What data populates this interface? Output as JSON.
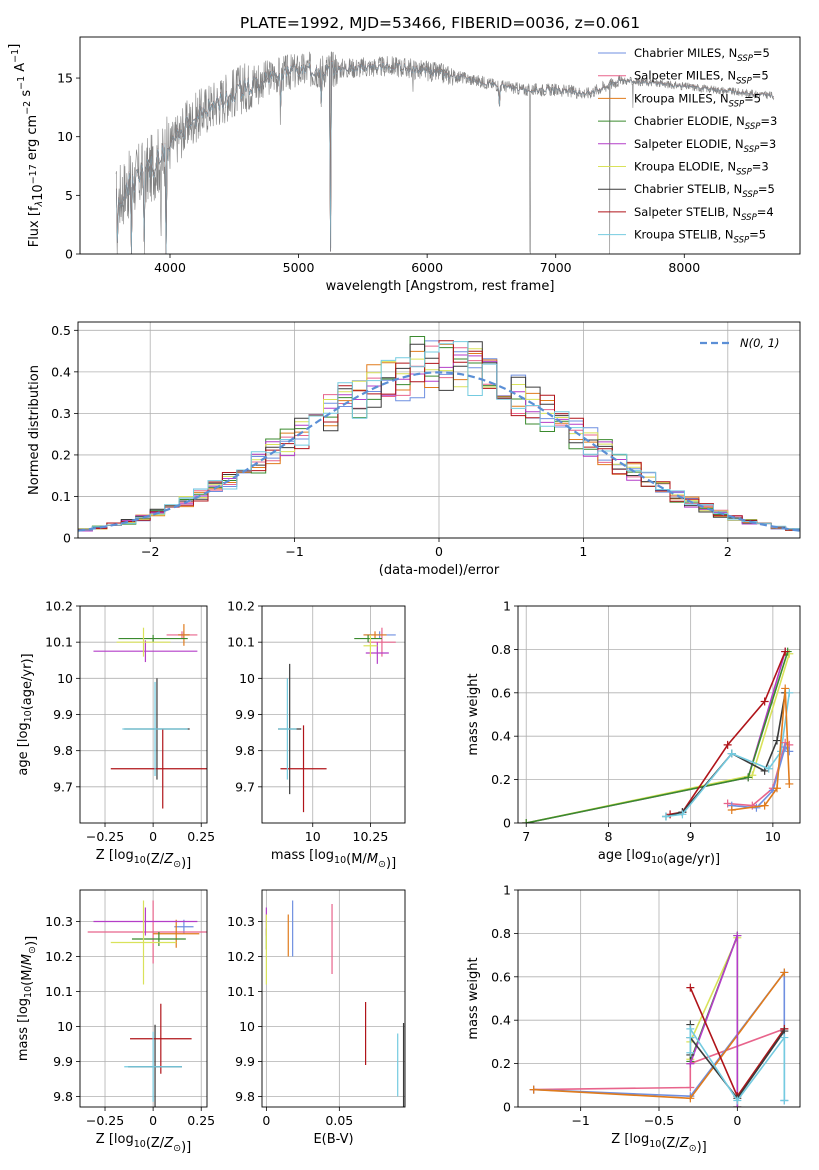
{
  "figure_title": "PLATE=1992, MJD=53466, FIBERID=0036, z=0.061",
  "colors": {
    "chabrier_miles": "#6f8fe0",
    "salpeter_miles": "#e8648c",
    "kroupa_miles": "#e07b1c",
    "chabrier_elodie": "#3a8a2e",
    "salpeter_elodie": "#b43ec8",
    "kroupa_elodie": "#d9e25a",
    "chabrier_stelib": "#3b3b3b",
    "salpeter_stelib": "#b0141a",
    "kroupa_stelib": "#74cbe0",
    "data": "#808080",
    "normal": "#5b8fd6"
  },
  "chart_data": [
    {
      "id": "spectrum",
      "type": "line",
      "xlabel": "wavelength [Angstrom, rest frame]",
      "ylabel": "Flux [f_λ10^{-17} erg cm^{-2} s^{-1} A^{-1}]",
      "xlim": [
        3300,
        8900
      ],
      "ylim": [
        0,
        18.5
      ],
      "xticks": [
        4000,
        5000,
        6000,
        7000,
        8000
      ],
      "yticks": [
        0,
        5,
        10,
        15
      ],
      "legend_position": "upper right",
      "legend": [
        {
          "key": "chabrier_miles",
          "label": "Chabrier MILES, N",
          "nssp": "5"
        },
        {
          "key": "salpeter_miles",
          "label": "Salpeter MILES, N",
          "nssp": "5"
        },
        {
          "key": "kroupa_miles",
          "label": "Kroupa MILES, N",
          "nssp": "5"
        },
        {
          "key": "chabrier_elodie",
          "label": "Chabrier ELODIE, N",
          "nssp": "3"
        },
        {
          "key": "salpeter_elodie",
          "label": "Salpeter ELODIE, N",
          "nssp": "3"
        },
        {
          "key": "kroupa_elodie",
          "label": "Kroupa ELODIE, N",
          "nssp": "3"
        },
        {
          "key": "chabrier_stelib",
          "label": "Chabrier STELIB, N",
          "nssp": "5"
        },
        {
          "key": "salpeter_stelib",
          "label": "Salpeter STELIB, N",
          "nssp": "4"
        },
        {
          "key": "kroupa_stelib",
          "label": "Kroupa STELIB, N",
          "nssp": "5"
        }
      ],
      "continuum": [
        [
          3580,
          4.5
        ],
        [
          3650,
          5.5
        ],
        [
          3750,
          6.5
        ],
        [
          3850,
          7.2
        ],
        [
          3950,
          8.5
        ],
        [
          4050,
          9.8
        ],
        [
          4150,
          11.2
        ],
        [
          4300,
          12.5
        ],
        [
          4450,
          13.5
        ],
        [
          4600,
          14.3
        ],
        [
          4800,
          15.2
        ],
        [
          5000,
          15.6
        ],
        [
          5250,
          15.8
        ],
        [
          5500,
          15.9
        ],
        [
          5750,
          16.0
        ],
        [
          6000,
          15.6
        ],
        [
          6250,
          15.1
        ],
        [
          6500,
          14.5
        ],
        [
          6750,
          14.0
        ],
        [
          7000,
          14.0
        ],
        [
          7250,
          13.7
        ],
        [
          7500,
          14.8
        ],
        [
          7750,
          14.6
        ],
        [
          8000,
          14.3
        ],
        [
          8250,
          14.0
        ],
        [
          8500,
          13.7
        ],
        [
          8700,
          13.5
        ]
      ],
      "spectral_dips": [
        [
          3590,
          0
        ],
        [
          3700,
          0.1
        ],
        [
          3800,
          0
        ],
        [
          3930,
          0.3
        ],
        [
          3968,
          0
        ],
        [
          4860,
          12.0
        ],
        [
          5175,
          13.0
        ],
        [
          5250,
          0
        ],
        [
          5890,
          13.5
        ],
        [
          6563,
          12.5
        ],
        [
          6800,
          0
        ],
        [
          7420,
          0
        ],
        [
          7600,
          12.5
        ]
      ]
    },
    {
      "id": "residuals",
      "type": "step-histogram",
      "xlabel": "(data-model)/error",
      "ylabel": "Normed distribution",
      "xlim": [
        -2.5,
        2.5
      ],
      "ylim": [
        0,
        0.52
      ],
      "xticks": [
        -2,
        -1,
        0,
        1,
        2
      ],
      "yticks": [
        0.0,
        0.1,
        0.2,
        0.3,
        0.4,
        0.5
      ],
      "legend_position": "upper right",
      "normal_label": "N(0, 1)",
      "bin_width": 0.1,
      "grid": true
    },
    {
      "id": "age_vs_z",
      "type": "errorbar",
      "xlabel": "Z [log10(Z/Z⊙)]",
      "ylabel": "age  [log10(age/yr)]",
      "xlim": [
        -0.38,
        0.28
      ],
      "ylim": [
        9.6,
        10.2
      ],
      "xticks": [
        -0.25,
        0.0,
        0.25
      ],
      "yticks": [
        9.7,
        9.8,
        9.9,
        10.0,
        10.1,
        10.2
      ],
      "grid": true,
      "points": [
        {
          "key": "chabrier_miles",
          "x": 0.16,
          "xerr": 0.03,
          "y": 10.12,
          "yerr": 0.01
        },
        {
          "key": "salpeter_miles",
          "x": 0.15,
          "xerr": 0.08,
          "y": 10.12,
          "yerr": 0.01
        },
        {
          "key": "kroupa_miles",
          "x": 0.16,
          "xerr": 0.03,
          "y": 10.12,
          "yerr": 0.03
        },
        {
          "key": "chabrier_elodie",
          "x": 0.0,
          "xerr": 0.18,
          "y": 10.11,
          "yerr": 0.01
        },
        {
          "key": "salpeter_elodie",
          "x": -0.04,
          "xerr": 0.27,
          "y": 10.075,
          "yerr": 0.03
        },
        {
          "key": "kroupa_elodie",
          "x": -0.05,
          "xerr": 0.14,
          "y": 10.1,
          "yerr": 0.04
        },
        {
          "key": "chabrier_stelib",
          "x": 0.02,
          "xerr": 0.17,
          "y": 9.86,
          "yerr": 0.14
        },
        {
          "key": "salpeter_stelib",
          "x": 0.05,
          "xerr": 0.27,
          "y": 9.75,
          "yerr": 0.11
        },
        {
          "key": "kroupa_stelib",
          "x": 0.01,
          "xerr": 0.17,
          "y": 9.86,
          "yerr": 0.13
        }
      ]
    },
    {
      "id": "age_vs_mass",
      "type": "errorbar",
      "xlabel": "mass [log10(M/M⊙)]",
      "ylabel": "",
      "xlim": [
        9.78,
        10.4
      ],
      "ylim": [
        9.6,
        10.2
      ],
      "xticks": [
        10.0,
        10.25
      ],
      "yticks": [
        9.7,
        9.8,
        9.9,
        10.0,
        10.1,
        10.2
      ],
      "grid": true,
      "points": [
        {
          "key": "chabrier_miles",
          "x": 10.29,
          "xerr": 0.07,
          "y": 10.12,
          "yerr": 0.01
        },
        {
          "key": "salpeter_miles",
          "x": 10.3,
          "xerr": 0.06,
          "y": 10.1,
          "yerr": 0.04
        },
        {
          "key": "kroupa_miles",
          "x": 10.27,
          "xerr": 0.05,
          "y": 10.12,
          "yerr": 0.01
        },
        {
          "key": "chabrier_elodie",
          "x": 10.24,
          "xerr": 0.06,
          "y": 10.11,
          "yerr": 0.01
        },
        {
          "key": "salpeter_elodie",
          "x": 10.28,
          "xerr": 0.05,
          "y": 10.07,
          "yerr": 0.03
        },
        {
          "key": "kroupa_elodie",
          "x": 10.25,
          "xerr": 0.03,
          "y": 10.09,
          "yerr": 0.03
        },
        {
          "key": "chabrier_stelib",
          "x": 9.9,
          "xerr": 0.05,
          "y": 9.86,
          "yerr": 0.18
        },
        {
          "key": "salpeter_stelib",
          "x": 9.96,
          "xerr": 0.1,
          "y": 9.75,
          "yerr": 0.12
        },
        {
          "key": "kroupa_stelib",
          "x": 9.89,
          "xerr": 0.04,
          "y": 9.86,
          "yerr": 0.14
        }
      ]
    },
    {
      "id": "weight_vs_age",
      "type": "line",
      "xlabel": "age  [log10(age/yr)]",
      "ylabel": "mass weight",
      "xlim": [
        6.9,
        10.33
      ],
      "ylim": [
        0,
        1.0
      ],
      "xticks": [
        7,
        8,
        9,
        10
      ],
      "yticks": [
        0.0,
        0.2,
        0.4,
        0.6,
        0.8,
        1.0
      ],
      "grid": true,
      "series": [
        {
          "key": "salpeter_elodie",
          "x": [
            7.0,
            9.7,
            10.15
          ],
          "y": [
            0.0,
            0.21,
            0.79
          ]
        },
        {
          "key": "kroupa_elodie",
          "x": [
            7.0,
            9.75,
            10.2
          ],
          "y": [
            0.0,
            0.22,
            0.78
          ]
        },
        {
          "key": "chabrier_elodie",
          "x": [
            7.0,
            9.7,
            10.18
          ],
          "y": [
            0.0,
            0.21,
            0.79
          ]
        },
        {
          "key": "salpeter_stelib",
          "x": [
            8.75,
            8.9,
            9.45,
            9.9,
            10.15
          ],
          "y": [
            0.04,
            0.05,
            0.36,
            0.56,
            0.79
          ]
        },
        {
          "key": "chabrier_stelib",
          "x": [
            8.7,
            8.9,
            9.5,
            9.9,
            10.05,
            10.15
          ],
          "y": [
            0.03,
            0.05,
            0.32,
            0.24,
            0.38,
            0.6
          ]
        },
        {
          "key": "kroupa_stelib",
          "x": [
            8.7,
            8.9,
            9.5,
            9.95,
            10.1,
            10.2
          ],
          "y": [
            0.03,
            0.04,
            0.32,
            0.25,
            0.33,
            0.6
          ]
        },
        {
          "key": "salpeter_miles",
          "x": [
            9.45,
            9.75,
            10.0,
            10.15,
            10.2
          ],
          "y": [
            0.09,
            0.08,
            0.16,
            0.37,
            0.36
          ]
        },
        {
          "key": "chabrier_miles",
          "x": [
            9.5,
            9.8,
            10.0,
            10.15,
            10.2
          ],
          "y": [
            0.08,
            0.07,
            0.15,
            0.35,
            0.33
          ]
        },
        {
          "key": "kroupa_miles",
          "x": [
            9.5,
            9.9,
            10.05,
            10.15,
            10.2
          ],
          "y": [
            0.06,
            0.08,
            0.16,
            0.62,
            0.18
          ]
        }
      ]
    },
    {
      "id": "mass_vs_z",
      "type": "errorbar",
      "xlabel": "Z [log10(Z/Z⊙)]",
      "ylabel": "mass [log10(M/M⊙)]",
      "xlim": [
        -0.38,
        0.28
      ],
      "ylim": [
        9.77,
        10.39
      ],
      "xticks": [
        -0.25,
        0.0,
        0.25
      ],
      "yticks": [
        9.8,
        9.9,
        10.0,
        10.1,
        10.2,
        10.3
      ],
      "grid": true,
      "points": [
        {
          "key": "chabrier_miles",
          "x": 0.16,
          "xerr": 0.05,
          "y": 10.285,
          "yerr": 0.02
        },
        {
          "key": "salpeter_miles",
          "x": 0.0,
          "xerr": 0.34,
          "y": 10.27,
          "yerr": 0.09
        },
        {
          "key": "kroupa_miles",
          "x": 0.12,
          "xerr": 0.12,
          "y": 10.265,
          "yerr": 0.04
        },
        {
          "key": "chabrier_elodie",
          "x": 0.03,
          "xerr": 0.14,
          "y": 10.25,
          "yerr": 0.02
        },
        {
          "key": "salpeter_elodie",
          "x": -0.04,
          "xerr": 0.27,
          "y": 10.3,
          "yerr": 0.04
        },
        {
          "key": "kroupa_elodie",
          "x": -0.05,
          "xerr": 0.17,
          "y": 10.24,
          "yerr": 0.12
        },
        {
          "key": "chabrier_stelib",
          "x": 0.01,
          "xerr": 0.14,
          "y": 9.885,
          "yerr": 0.12
        },
        {
          "key": "salpeter_stelib",
          "x": 0.04,
          "xerr": 0.16,
          "y": 9.965,
          "yerr": 0.1
        },
        {
          "key": "kroupa_stelib",
          "x": 0.0,
          "xerr": 0.15,
          "y": 9.885,
          "yerr": 0.1
        }
      ]
    },
    {
      "id": "mass_vs_ebv",
      "type": "errorbar",
      "xlabel": "E(B-V)",
      "ylabel": "",
      "xlim": [
        -0.003,
        0.095
      ],
      "ylim": [
        9.77,
        10.39
      ],
      "xticks": [
        0.0,
        0.05
      ],
      "yticks": [
        9.8,
        9.9,
        10.0,
        10.1,
        10.2,
        10.3
      ],
      "grid": true,
      "points": [
        {
          "key": "chabrier_miles",
          "x": 0.018,
          "y": 10.28,
          "yerr": 0.08
        },
        {
          "key": "salpeter_miles",
          "x": 0.045,
          "y": 10.25,
          "yerr": 0.1
        },
        {
          "key": "kroupa_miles",
          "x": 0.015,
          "y": 10.26,
          "yerr": 0.06
        },
        {
          "key": "chabrier_elodie",
          "x": 0.0,
          "y": 10.25,
          "yerr": 0.03
        },
        {
          "key": "salpeter_elodie",
          "x": 0.0,
          "y": 10.3,
          "yerr": 0.04
        },
        {
          "key": "kroupa_elodie",
          "x": 0.0,
          "y": 10.22,
          "yerr": 0.1
        },
        {
          "key": "chabrier_stelib",
          "x": 0.094,
          "y": 9.89,
          "yerr": 0.12
        },
        {
          "key": "salpeter_stelib",
          "x": 0.068,
          "y": 9.98,
          "yerr": 0.09
        },
        {
          "key": "kroupa_stelib",
          "x": 0.09,
          "y": 9.89,
          "yerr": 0.09
        }
      ]
    },
    {
      "id": "weight_vs_z",
      "type": "line",
      "xlabel": "Z [log10(Z/Z⊙)]",
      "ylabel": "mass weight",
      "xlim": [
        -1.4,
        0.4
      ],
      "ylim": [
        0,
        1.0
      ],
      "xticks": [
        -1.0,
        -0.5,
        0.0
      ],
      "yticks": [
        0.0,
        0.2,
        0.4,
        0.6,
        0.8,
        1.0
      ],
      "grid": true,
      "series": [
        {
          "key": "salpeter_miles",
          "x": [
            -1.3,
            -0.3,
            -0.3,
            0.3
          ],
          "y": [
            0.08,
            0.09,
            0.2,
            0.36
          ]
        },
        {
          "key": "chabrier_miles",
          "x": [
            -1.3,
            -0.3,
            0.3,
            0.3
          ],
          "y": [
            0.08,
            0.05,
            0.62,
            0.03
          ]
        },
        {
          "key": "kroupa_miles",
          "x": [
            -1.3,
            -0.3,
            0.3
          ],
          "y": [
            0.08,
            0.04,
            0.62
          ]
        },
        {
          "key": "kroupa_elodie",
          "x": [
            -0.3,
            -0.3,
            0.0,
            0.0
          ],
          "y": [
            0.22,
            0.3,
            0.78,
            0.0
          ]
        },
        {
          "key": "chabrier_elodie",
          "x": [
            -0.3,
            0.0,
            0.0
          ],
          "y": [
            0.21,
            0.79,
            0.0
          ]
        },
        {
          "key": "salpeter_elodie",
          "x": [
            -0.3,
            0.0,
            0.0
          ],
          "y": [
            0.2,
            0.79,
            0.0
          ]
        },
        {
          "key": "salpeter_stelib",
          "x": [
            -0.3,
            0.0,
            0.3
          ],
          "y": [
            0.55,
            0.05,
            0.36
          ]
        },
        {
          "key": "chabrier_stelib",
          "x": [
            -0.3,
            -0.3,
            -0.3,
            0.0,
            0.3
          ],
          "y": [
            0.38,
            0.24,
            0.32,
            0.04,
            0.35
          ]
        },
        {
          "key": "kroupa_stelib",
          "x": [
            -0.3,
            -0.3,
            -0.3,
            0.0,
            0.3,
            0.3
          ],
          "y": [
            0.32,
            0.25,
            0.36,
            0.03,
            0.32,
            0.03
          ]
        }
      ]
    }
  ]
}
